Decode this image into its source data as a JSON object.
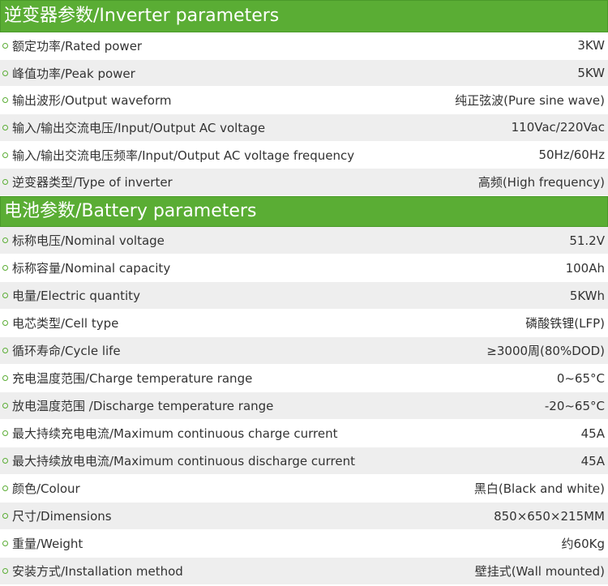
{
  "inverter": {
    "title": "逆变器参数/Inverter parameters",
    "rows": [
      {
        "label": "额定功率/Rated power",
        "value": "3KW"
      },
      {
        "label": "峰值功率/Peak power",
        "value": "5KW"
      },
      {
        "label": "输出波形/Output waveform",
        "value": "纯正弦波(Pure sine wave)"
      },
      {
        "label": "输入/输出交流电压/Input/Output AC voltage",
        "value": "110Vac/220Vac"
      },
      {
        "label": "输入/输出交流电压频率/Input/Output AC voltage frequency",
        "value": "50Hz/60Hz"
      },
      {
        "label": "逆变器类型/Type of inverter",
        "value": "高频(High frequency)"
      }
    ]
  },
  "battery": {
    "title": "电池参数/Battery parameters",
    "rows": [
      {
        "label": "标称电压/Nominal voltage",
        "value": "51.2V"
      },
      {
        "label": "标称容量/Nominal capacity",
        "value": "100Ah"
      },
      {
        "label": "电量/Electric quantity",
        "value": "5KWh"
      },
      {
        "label": "电芯类型/Cell type",
        "value": "磷酸铁锂(LFP)"
      },
      {
        "label": "循环寿命/Cycle life",
        "value": "≥3000周(80%DOD)"
      },
      {
        "label": "充电温度范围/Charge temperature range",
        "value": "0~65°C"
      },
      {
        "label": "放电温度范围 /Discharge temperature range",
        "value": "-20~65°C"
      },
      {
        "label": "最大持续充电电流/Maximum continuous charge current",
        "value": "45A"
      },
      {
        "label": "最大持续放电电流/Maximum continuous discharge current",
        "value": "45A"
      },
      {
        "label": "颜色/Colour",
        "value": "黑白(Black and white)"
      },
      {
        "label": "尺寸/Dimensions",
        "value": "850×650×215MM"
      },
      {
        "label": "重量/Weight",
        "value": "约60Kg"
      },
      {
        "label": "安装方式/Installation method",
        "value": "壁挂式(Wall mounted)"
      }
    ]
  },
  "colors": {
    "accent": "#5aad34",
    "stripe": "#eeeeee"
  }
}
